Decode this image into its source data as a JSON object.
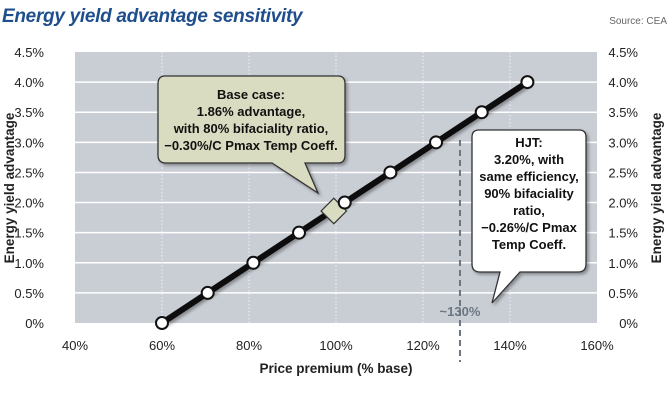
{
  "title": "Energy yield advantage sensitivity",
  "source": "Source: CEA",
  "chart_data": {
    "type": "line",
    "title": "Energy yield advantage sensitivity",
    "xlabel": "Price premium (% base)",
    "ylabel": "Energy yield advantage",
    "xlim": [
      40,
      160
    ],
    "ylim": [
      0,
      4.5
    ],
    "xticks": [
      "40%",
      "60%",
      "80%",
      "100%",
      "120%",
      "140%",
      "160%"
    ],
    "yticks": [
      "0%",
      "0.5%",
      "1.0%",
      "1.5%",
      "2.0%",
      "2.5%",
      "3.0%",
      "3.5%",
      "4.0%",
      "4.5%"
    ],
    "grid": true,
    "x": [
      60,
      70.5,
      81,
      91.5,
      102,
      112.5,
      123,
      133.5,
      144
    ],
    "y": [
      0,
      0.5,
      1.0,
      1.5,
      2.0,
      2.5,
      3.0,
      3.5,
      4.0
    ],
    "base_case": {
      "x": 99.5,
      "y": 1.86,
      "lines": [
        "Base case:",
        "1.86% advantage,",
        "with 80% bifaciality ratio,",
        "−0.30%/C Pmax Temp Coeff."
      ]
    },
    "hjt": {
      "lines": [
        "HJT:",
        "3.20%, with",
        "same efficiency,",
        "90% bifaciality",
        "ratio,",
        "−0.26%/C Pmax",
        "Temp Coeff."
      ]
    },
    "reference_line": {
      "x": 128.5,
      "label": "~130%"
    },
    "colors": {
      "plot_bg": "#c9ced5",
      "line": "#111111",
      "callout": "#d9dcc0",
      "hjt_callout": "#ffffff",
      "ref_line": "#6d7680",
      "title": "#1f4e8c"
    }
  }
}
